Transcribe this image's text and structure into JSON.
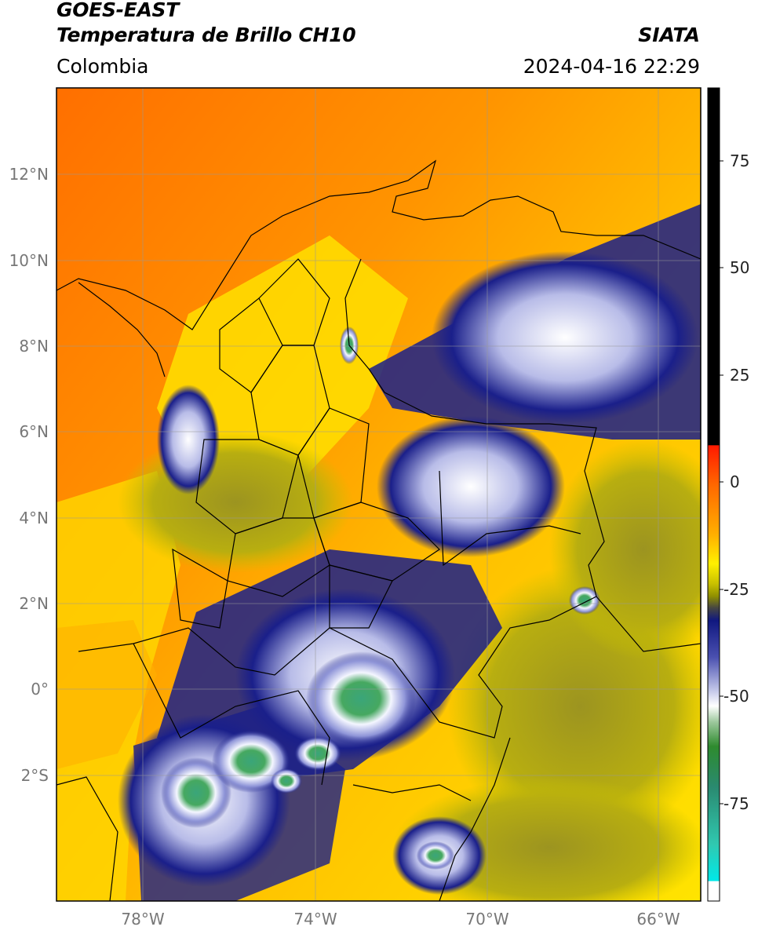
{
  "header": {
    "satellite": "GOES-EAST",
    "product": "Temperatura de Brillo CH10",
    "region": "Colombia",
    "agency": "SIATA",
    "timestamp": "2024-04-16 22:29"
  },
  "axes": {
    "lat_labels": [
      "12°N",
      "10°N",
      "8°N",
      "6°N",
      "4°N",
      "2°N",
      "0°",
      "2°S"
    ],
    "lon_labels": [
      "78°W",
      "74°W",
      "70°W",
      "66°W"
    ]
  },
  "colorbar": {
    "ticks": [
      "75",
      "50",
      "25",
      "0",
      "-25",
      "-50",
      "-75"
    ],
    "colors": {
      "black": "#000000",
      "red": "#ff2200",
      "orange": "#ff8800",
      "yellow": "#ffee00",
      "olive": "#a8a000",
      "darkgray": "#444444",
      "navy": "#101880",
      "lavender": "#b8bce0",
      "white": "#ffffff",
      "green": "#2e8b2e",
      "teal": "#30c0a0",
      "cyan": "#00e5e5"
    }
  },
  "map_colors": {
    "ocean_warm": "#ff7a00",
    "land_warm": "#ffd500",
    "cloud_dark": "#1a1f8a",
    "cloud_mid": "#b0b5e8",
    "cloud_cold": "#f2f4ff",
    "cloud_very_cold": "#2a9a6a",
    "olive_land": "#b0a820"
  }
}
